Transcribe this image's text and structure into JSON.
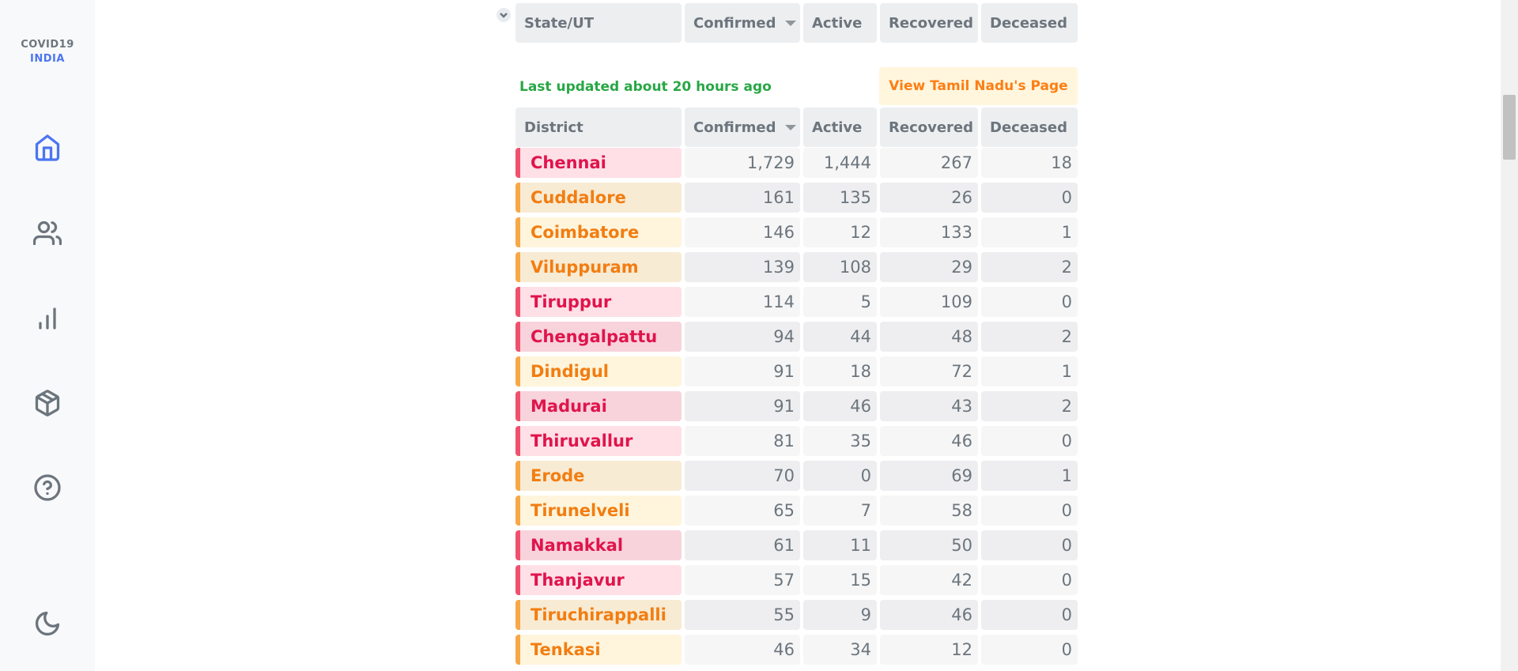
{
  "sidebar": {
    "logo_line1": "COVID19",
    "logo_line2": "INDIA",
    "colors": {
      "active": "#4c75f2",
      "inactive": "#6c757d"
    },
    "icons": [
      "home-icon",
      "users-icon",
      "bar-chart-icon",
      "package-icon",
      "help-circle-icon",
      "moon-icon"
    ]
  },
  "state_header": {
    "columns": [
      "State/UT",
      "Confirmed",
      "Active",
      "Recovered",
      "Deceased"
    ]
  },
  "last_updated": "Last updated about 20 hours ago",
  "view_state_button": "View Tamil Nadu's Page",
  "district_header": {
    "columns": [
      "District",
      "Confirmed",
      "Active",
      "Recovered",
      "Deceased"
    ]
  },
  "districts": [
    {
      "name": "Chennai",
      "confirmed": "1,729",
      "active": "1,444",
      "recovered": "267",
      "deceased": "18",
      "tone": "red"
    },
    {
      "name": "Cuddalore",
      "confirmed": "161",
      "active": "135",
      "recovered": "26",
      "deceased": "0",
      "tone": "orange"
    },
    {
      "name": "Coimbatore",
      "confirmed": "146",
      "active": "12",
      "recovered": "133",
      "deceased": "1",
      "tone": "orange"
    },
    {
      "name": "Viluppuram",
      "confirmed": "139",
      "active": "108",
      "recovered": "29",
      "deceased": "2",
      "tone": "orange"
    },
    {
      "name": "Tiruppur",
      "confirmed": "114",
      "active": "5",
      "recovered": "109",
      "deceased": "0",
      "tone": "red"
    },
    {
      "name": "Chengalpattu",
      "confirmed": "94",
      "active": "44",
      "recovered": "48",
      "deceased": "2",
      "tone": "red"
    },
    {
      "name": "Dindigul",
      "confirmed": "91",
      "active": "18",
      "recovered": "72",
      "deceased": "1",
      "tone": "orange"
    },
    {
      "name": "Madurai",
      "confirmed": "91",
      "active": "46",
      "recovered": "43",
      "deceased": "2",
      "tone": "red"
    },
    {
      "name": "Thiruvallur",
      "confirmed": "81",
      "active": "35",
      "recovered": "46",
      "deceased": "0",
      "tone": "red"
    },
    {
      "name": "Erode",
      "confirmed": "70",
      "active": "0",
      "recovered": "69",
      "deceased": "1",
      "tone": "orange"
    },
    {
      "name": "Tirunelveli",
      "confirmed": "65",
      "active": "7",
      "recovered": "58",
      "deceased": "0",
      "tone": "orange"
    },
    {
      "name": "Namakkal",
      "confirmed": "61",
      "active": "11",
      "recovered": "50",
      "deceased": "0",
      "tone": "red"
    },
    {
      "name": "Thanjavur",
      "confirmed": "57",
      "active": "15",
      "recovered": "42",
      "deceased": "0",
      "tone": "red"
    },
    {
      "name": "Tiruchirappalli",
      "confirmed": "55",
      "active": "9",
      "recovered": "46",
      "deceased": "0",
      "tone": "orange"
    },
    {
      "name": "Tenkasi",
      "confirmed": "46",
      "active": "34",
      "recovered": "12",
      "deceased": "0",
      "tone": "orange"
    }
  ]
}
